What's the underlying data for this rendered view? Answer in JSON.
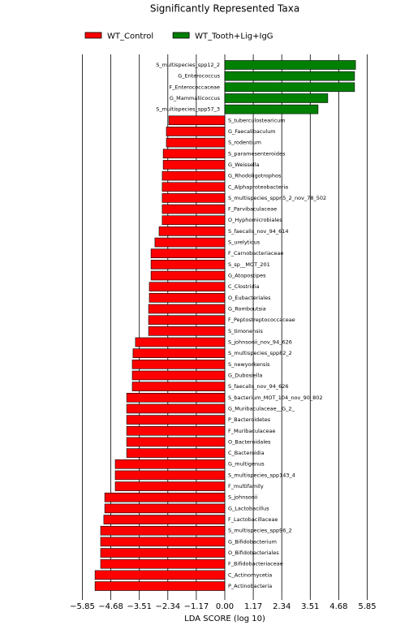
{
  "chart_data": {
    "type": "lda-bar",
    "title": "Significantly Represented Taxa",
    "xlabel": "LDA SCORE (log 10)",
    "categories": [
      "S_multispecies_spp12_2",
      "G_Enterococcus",
      "F_Enterococcaceae",
      "G_Mammaliicoccus",
      "S_multispecies_spp57_3",
      "S_tuberculostearicum",
      "G_Faecalibaculum",
      "S_rodentium",
      "S_paramesenteroides",
      "G_Weissella",
      "G_Rhodoligotrophos",
      "C_Alphaproteobacteria",
      "S_multispecies_sppn5_2_nov_78_502",
      "F_Parvibaculaceae",
      "O_Hyphomicrobiales",
      "S_faecalis_nov_94_614",
      "S_urelyticus",
      "F_Carnobacteriaceae",
      "S_sp__MOT_201",
      "G_Atopostipes",
      "C_Clostridia",
      "O_Eubacteriales",
      "G_Romboutsia",
      "F_Peptostreptococcaceae",
      "S_timonensis",
      "S_johnsonii_nov_94_626",
      "S_multispecies_spp82_2",
      "S_newyorkensis",
      "G_Dubosiella",
      "S_faecalis_nov_94_626",
      "S_bacterium_MOT_104_nov_90_802",
      "G_Muribaculaceae__G_2_",
      "P_Bacteroidetes",
      "F_Muribaculaceae",
      "O_Bacteroidales",
      "C_Bacteroidia",
      "G_multigenus",
      "S_multispecies_spp143_4",
      "F_multifamily",
      "S_johnsonii",
      "G_Lactobacillus",
      "F_Lactobacillaceae",
      "S_multispecies_spp96_2",
      "G_Bifidobacterium",
      "O_Bifidobacteriales",
      "F_Bifidobacteriaceae",
      "C_Actinomycetia",
      "P_Actinobacteria"
    ],
    "series": [
      {
        "name": "WT_Control",
        "color": "#ff0000",
        "values": [
          null,
          null,
          null,
          null,
          null,
          -2.3,
          -2.4,
          -2.4,
          -2.53,
          -2.53,
          -2.57,
          -2.57,
          -2.57,
          -2.57,
          -2.57,
          -2.7,
          -2.87,
          -3.03,
          -3.03,
          -3.03,
          -3.1,
          -3.1,
          -3.13,
          -3.13,
          -3.13,
          -3.67,
          -3.77,
          -3.8,
          -3.8,
          -3.8,
          -4.03,
          -4.03,
          -4.03,
          -4.03,
          -4.03,
          -4.03,
          -4.5,
          -4.5,
          -4.5,
          -4.93,
          -4.93,
          -4.97,
          -5.1,
          -5.1,
          -5.1,
          -5.1,
          -5.33,
          -5.33
        ]
      },
      {
        "name": "WT_Tooth+Lig+IgG",
        "color": "#008000",
        "values": [
          5.37,
          5.33,
          5.33,
          4.23,
          3.83,
          null,
          null,
          null,
          null,
          null,
          null,
          null,
          null,
          null,
          null,
          null,
          null,
          null,
          null,
          null,
          null,
          null,
          null,
          null,
          null,
          null,
          null,
          null,
          null,
          null,
          null,
          null,
          null,
          null,
          null,
          null,
          null,
          null,
          null,
          null,
          null,
          null,
          null,
          null,
          null,
          null,
          null,
          null
        ]
      }
    ],
    "xlim": [
      -6.5,
      6.5
    ],
    "xticks": [
      {
        "value": -5.85,
        "label": "−5.85"
      },
      {
        "value": -4.68,
        "label": "−4.68"
      },
      {
        "value": -3.51,
        "label": "−3.51"
      },
      {
        "value": -2.34,
        "label": "−2.34"
      },
      {
        "value": -1.17,
        "label": "−1.17"
      },
      {
        "value": 0,
        "label": "0.00"
      },
      1.17,
      2.34,
      3.51,
      4.68,
      5.85
    ],
    "grid": true
  }
}
